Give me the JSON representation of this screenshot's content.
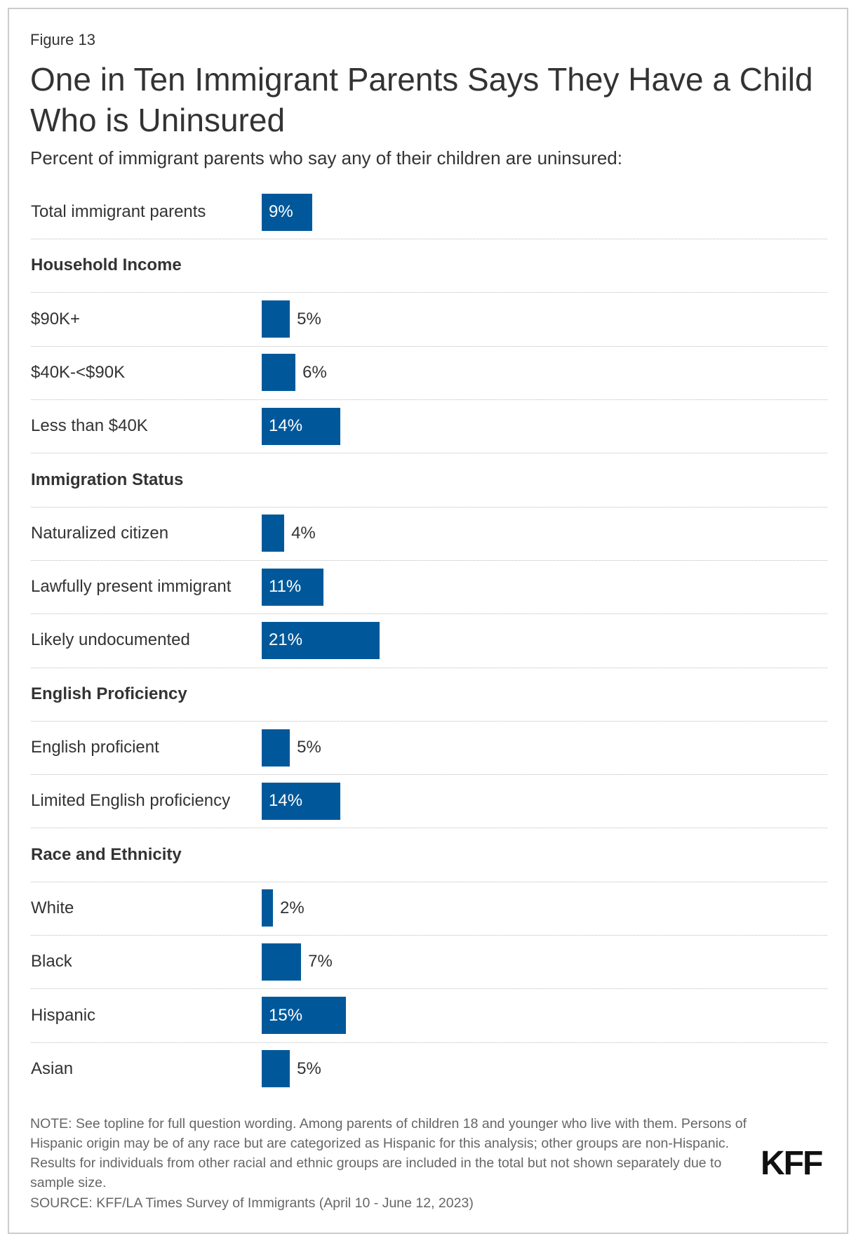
{
  "figure_label": "Figure 13",
  "colors": {
    "bar": "#00589A",
    "text": "#333333",
    "note": "#666666"
  },
  "chart_data": {
    "type": "bar",
    "orientation": "horizontal",
    "title": "One in Ten Immigrant Parents Says They Have a Child Who is Uninsured",
    "subtitle": "Percent of immigrant parents who say any of their children are uninsured:",
    "unit": "%",
    "rows": [
      {
        "label": "Total immigrant parents",
        "value": 9,
        "display": "9%"
      },
      {
        "header": "Household Income"
      },
      {
        "label": "$90K+",
        "value": 5,
        "display": "5%"
      },
      {
        "label": "$40K-<$90K",
        "value": 6,
        "display": "6%"
      },
      {
        "label": "Less than $40K",
        "value": 14,
        "display": "14%"
      },
      {
        "header": "Immigration Status"
      },
      {
        "label": "Naturalized citizen",
        "value": 4,
        "display": "4%"
      },
      {
        "label": "Lawfully present immigrant",
        "value": 11,
        "display": "11%"
      },
      {
        "label": "Likely undocumented",
        "value": 21,
        "display": "21%"
      },
      {
        "header": "English Proficiency"
      },
      {
        "label": "English proficient",
        "value": 5,
        "display": "5%"
      },
      {
        "label": "Limited English proficiency",
        "value": 14,
        "display": "14%"
      },
      {
        "header": "Race and Ethnicity"
      },
      {
        "label": "White",
        "value": 2,
        "display": "2%"
      },
      {
        "label": "Black",
        "value": 7,
        "display": "7%"
      },
      {
        "label": "Hispanic",
        "value": 15,
        "display": "15%"
      },
      {
        "label": "Asian",
        "value": 5,
        "display": "5%"
      }
    ],
    "grid": false,
    "legend": "none"
  },
  "note": "NOTE: See topline for full question wording. Among parents of children 18 and younger who live with them. Persons of Hispanic origin may be of any race but are categorized as Hispanic for this analysis; other groups are non-Hispanic. Results for individuals from other racial and ethnic groups are included in the total but not shown separately due to sample size.",
  "source": "SOURCE: KFF/LA Times Survey of Immigrants (April 10 - June 12, 2023)",
  "logo": "KFF"
}
